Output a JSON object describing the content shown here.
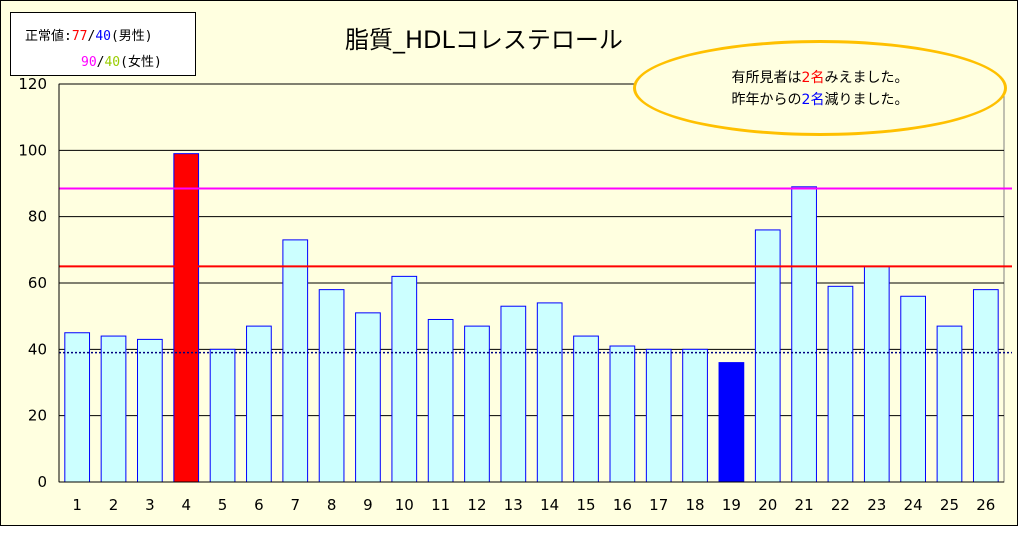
{
  "legend": {
    "line1_prefix": "正常値:",
    "line1_male_hi": "77",
    "line1_slash": "/",
    "line1_male_lo": "40",
    "line1_suffix": "(男性)",
    "line2_female_hi": "90",
    "line2_slash": "/",
    "line2_female_lo": "40",
    "line2_suffix": "(女性)"
  },
  "note": {
    "line1_prefix": "有所見者は",
    "line1_count": "2名",
    "line1_suffix": "みえました。",
    "line2_prefix": "昨年からの",
    "line2_count": "2名",
    "line2_suffix": "減りました。"
  },
  "colors": {
    "bar_default": "#ccffff",
    "bar_high": "#ff0000",
    "bar_low": "#0000ff",
    "bar_border": "#0000ff",
    "line_male": "#ff0000",
    "line_female": "#ff00ff",
    "line_low": "#000080",
    "legend_male_hi": "#ff0000",
    "legend_male_lo": "#0000ff",
    "legend_female_hi": "#ff00ff",
    "legend_female_lo": "#99cc00",
    "note_highlight_1": "#ff0000",
    "note_highlight_2": "#0000ff",
    "note_border": "#ffc000",
    "plot_bg": "#ffffe0"
  },
  "chart_data": {
    "type": "bar",
    "title": "脂質_HDLコレステロール",
    "xlabel": "",
    "ylabel": "",
    "ylim": [
      0,
      120
    ],
    "yticks": [
      "0",
      "20",
      "40",
      "60",
      "80",
      "100",
      "120"
    ],
    "ytick_values": [
      0,
      20,
      40,
      60,
      80,
      100,
      120
    ],
    "categories": [
      "1",
      "2",
      "3",
      "4",
      "5",
      "6",
      "7",
      "8",
      "9",
      "10",
      "11",
      "12",
      "13",
      "14",
      "15",
      "16",
      "17",
      "18",
      "19",
      "20",
      "21",
      "22",
      "23",
      "24",
      "25",
      "26"
    ],
    "values": [
      45,
      44,
      43,
      99,
      40,
      47,
      73,
      58,
      51,
      62,
      49,
      47,
      53,
      54,
      44,
      41,
      40,
      40,
      36,
      76,
      89,
      59,
      65,
      56,
      47,
      58
    ],
    "highlight_high": [
      4
    ],
    "highlight_low": [
      19
    ],
    "reference_lines": [
      {
        "value": 88.5,
        "color": "#ff00ff",
        "style": "solid"
      },
      {
        "value": 65,
        "color": "#ff0000",
        "style": "solid"
      },
      {
        "value": 39,
        "color": "#000080",
        "style": "dotted"
      }
    ],
    "grid": true,
    "legend": "top-left"
  }
}
